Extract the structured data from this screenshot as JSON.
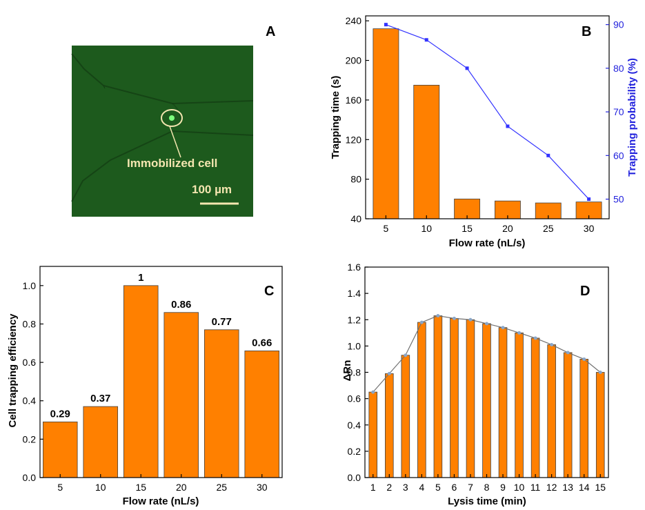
{
  "colors": {
    "bar": "#ff8000",
    "bar_stroke": "#404040",
    "line_b": "#3333ff",
    "line_d": "#707070",
    "marker_d": "#8aa6c8",
    "axis_right_b": "#2222dd",
    "micro_bg": "#1d5a1d",
    "annotation": "#f4e6b0"
  },
  "panel_a": {
    "letter": "A",
    "annotation": "Immobilized cell",
    "scale_label": "100 µm"
  },
  "chart_data": [
    {
      "panel": "B",
      "type": "bar",
      "categories": [
        "5",
        "10",
        "15",
        "20",
        "25",
        "30"
      ],
      "values": [
        232,
        175,
        60,
        58,
        56,
        57
      ],
      "xlabel": "Flow rate (nL/s)",
      "ylabel": "Trapping time (s)",
      "ylim": [
        40,
        245
      ],
      "yticks": [
        "40",
        "80",
        "120",
        "160",
        "200",
        "240"
      ],
      "secondary": {
        "type": "line",
        "values": [
          90,
          86.5,
          80,
          66.7,
          60,
          50
        ],
        "ylabel": "Trapping probability (%)",
        "ylim": [
          45.5,
          92
        ],
        "yticks": [
          "50",
          "60",
          "70",
          "80",
          "90"
        ]
      }
    },
    {
      "panel": "C",
      "type": "bar",
      "categories": [
        "5",
        "10",
        "15",
        "20",
        "25",
        "30"
      ],
      "values": [
        0.29,
        0.37,
        1.0,
        0.86,
        0.77,
        0.66
      ],
      "data_labels": [
        "0.29",
        "0.37",
        "1",
        "0.86",
        "0.77",
        "0.66"
      ],
      "xlabel": "Flow rate (nL/s)",
      "ylabel": "Cell trapping efficiency",
      "ylim": [
        0,
        1.1
      ],
      "yticks": [
        "0.0",
        "0.2",
        "0.4",
        "0.6",
        "0.8",
        "1.0"
      ]
    },
    {
      "panel": "D",
      "type": "bar",
      "categories": [
        "1",
        "2",
        "3",
        "4",
        "5",
        "6",
        "7",
        "8",
        "9",
        "10",
        "11",
        "12",
        "13",
        "14",
        "15"
      ],
      "values": [
        0.65,
        0.79,
        0.93,
        1.18,
        1.23,
        1.21,
        1.2,
        1.17,
        1.14,
        1.1,
        1.06,
        1.01,
        0.95,
        0.9,
        0.8
      ],
      "xlabel": "Lysis time (min)",
      "ylabel": "ΔRn",
      "ylim": [
        0,
        1.6
      ],
      "yticks": [
        "0.0",
        "0.2",
        "0.4",
        "0.6",
        "0.8",
        "1.0",
        "1.2",
        "1.4",
        "1.6"
      ],
      "overlay_line": true
    }
  ]
}
